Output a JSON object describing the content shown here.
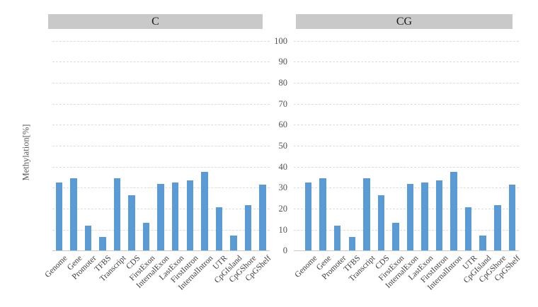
{
  "chart_data": {
    "type": "bar",
    "title": "",
    "ylabel": "Methylation[%]",
    "xlabel": "",
    "ylim": [
      0,
      100
    ],
    "y_ticks": [
      0,
      10,
      20,
      30,
      40,
      50,
      60,
      70,
      80,
      90,
      100
    ],
    "grid": "horizontal-dashed",
    "legend_position": "none",
    "bar_color": "#5b9bd5",
    "panel_header_bg": "#c9c9c9",
    "gridline_color": "#dcdcdc",
    "axis_line_color": "#c8c8c8",
    "categories": [
      "Genome",
      "Gene",
      "Promoter",
      "TFBS",
      "Transcript",
      "CDS",
      "FirstExon",
      "InternalExon",
      "LastExon",
      "FirstIntron",
      "InternalIntron",
      "UTR",
      "CpGIsland",
      "CpGShore",
      "CpGShelf"
    ],
    "panels": [
      {
        "title": "C",
        "values": [
          32.5,
          34.6,
          11.9,
          6.5,
          34.6,
          26.5,
          13.3,
          31.9,
          32.6,
          33.5,
          37.6,
          20.7,
          7.2,
          21.6,
          31.6
        ]
      },
      {
        "title": "CG",
        "values": [
          32.5,
          34.6,
          11.9,
          6.5,
          34.6,
          26.5,
          13.3,
          31.9,
          32.6,
          33.5,
          37.6,
          20.7,
          7.2,
          21.6,
          31.6
        ]
      }
    ]
  }
}
